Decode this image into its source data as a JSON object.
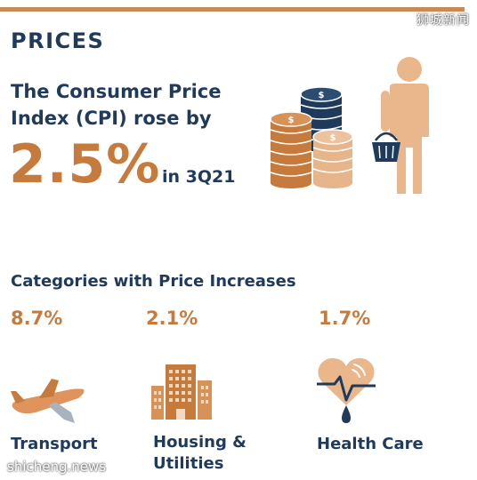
{
  "watermark_top": "狮城新闻",
  "watermark_bottom": "shicheng.news",
  "section_title": "PRICES",
  "headline": {
    "line1": "The Consumer Price",
    "line2": "Index (CPI) rose by",
    "value": "2.5%",
    "period": "in 3Q21"
  },
  "categories_title": "Categories with Price Increases",
  "categories": [
    {
      "pct": "8.7%",
      "label_line1": "Transport",
      "label_line2": "",
      "icon": "airplane-icon"
    },
    {
      "pct": "2.1%",
      "label_line1": "Housing &",
      "label_line2": "Utilities",
      "icon": "building-icon"
    },
    {
      "pct": "1.7%",
      "label_line1": "Health Care",
      "label_line2": "",
      "icon": "heart-pulse-icon"
    }
  ],
  "colors": {
    "navy": "#1f3a5a",
    "orange": "#c67a3c",
    "light_orange": "#e6b58c",
    "skin": "#eab78c"
  }
}
